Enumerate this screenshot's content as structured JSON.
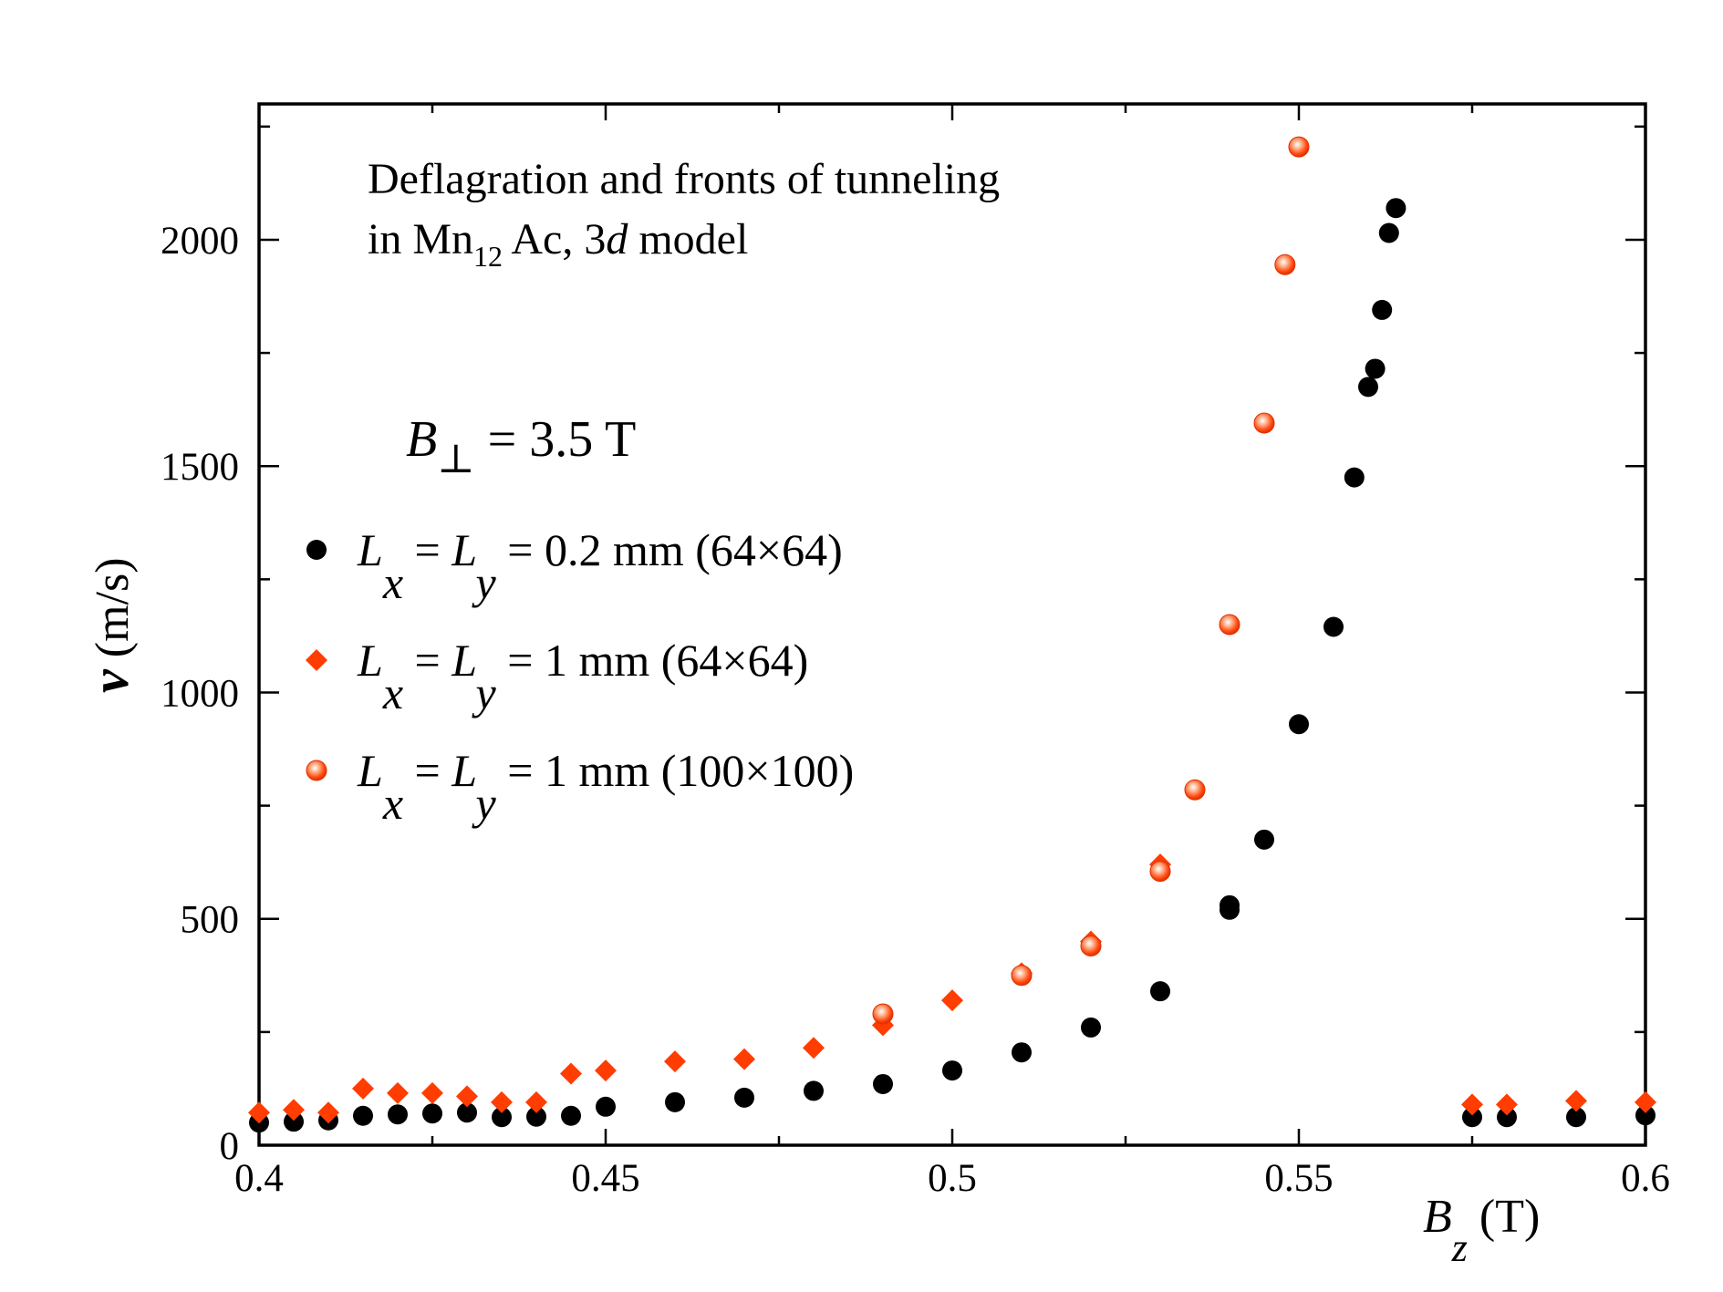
{
  "chart_data": {
    "type": "scatter",
    "title": {
      "line1": "Deflagration and fronts of tunneling",
      "line2_prefix": "in Mn",
      "line2_sub": "12",
      "line2_mid": " Ac, 3",
      "line2_italic": "d",
      "line2_suffix": "  model"
    },
    "field_annotation": {
      "symbol": "B",
      "sub": "⊥",
      "rest": " = 3.5 T"
    },
    "xlabel": {
      "symbol": "B",
      "sub": "z",
      "unit": " (T)"
    },
    "ylabel": {
      "symbol": "v",
      "unit": "  (m/s)"
    },
    "xlim": [
      0.4,
      0.6
    ],
    "ylim": [
      0,
      2300
    ],
    "x_ticks": [
      0.4,
      0.45,
      0.5,
      0.55,
      0.6
    ],
    "x_tick_labels": [
      "0.4",
      "0.45",
      "0.5",
      "0.55",
      "0.6"
    ],
    "y_ticks": [
      0,
      500,
      1000,
      1500,
      2000
    ],
    "y_tick_labels": [
      "0",
      "500",
      "1000",
      "1500",
      "2000"
    ],
    "grid": false,
    "legend_position": "left",
    "series": [
      {
        "name": "Lx = Ly = 0.2 mm (64×64)",
        "label_parts": [
          "L",
          "x",
          " = ",
          "L",
          "y",
          " = 0.2 mm (64×64)"
        ],
        "marker": "circle",
        "color": "#000000",
        "x": [
          0.4,
          0.405,
          0.41,
          0.415,
          0.42,
          0.425,
          0.43,
          0.435,
          0.44,
          0.445,
          0.45,
          0.46,
          0.47,
          0.48,
          0.49,
          0.5,
          0.51,
          0.52,
          0.53,
          0.54,
          0.54,
          0.545,
          0.55,
          0.555,
          0.558,
          0.56,
          0.561,
          0.562,
          0.563,
          0.564,
          0.575,
          0.58,
          0.59,
          0.6
        ],
        "y": [
          50,
          52,
          55,
          65,
          68,
          70,
          72,
          62,
          63,
          65,
          85,
          95,
          105,
          120,
          135,
          165,
          205,
          260,
          340,
          520,
          530,
          675,
          930,
          1145,
          1475,
          1675,
          1715,
          1845,
          2015,
          2070,
          62,
          62,
          62,
          66
        ]
      },
      {
        "name": "Lx = Ly = 1 mm (64×64)",
        "label_parts": [
          "L",
          "x",
          " = ",
          "L",
          "y",
          " = 1 mm (64×64)"
        ],
        "marker": "diamond",
        "color": "#FF3D00",
        "x": [
          0.4,
          0.405,
          0.41,
          0.415,
          0.42,
          0.425,
          0.43,
          0.435,
          0.44,
          0.445,
          0.45,
          0.46,
          0.47,
          0.48,
          0.49,
          0.5,
          0.51,
          0.52,
          0.53,
          0.575,
          0.58,
          0.59,
          0.6
        ],
        "y": [
          72,
          78,
          72,
          125,
          115,
          115,
          108,
          95,
          95,
          158,
          165,
          185,
          190,
          215,
          265,
          320,
          380,
          450,
          620,
          90,
          90,
          98,
          95
        ]
      },
      {
        "name": "Lx = Ly = 1 mm (100×100)",
        "label_parts": [
          "L",
          "x",
          " = ",
          "L",
          "y",
          " = 1 mm (100×100)"
        ],
        "marker": "shaded-circle",
        "color": "#FF3D00",
        "x": [
          0.49,
          0.51,
          0.52,
          0.53,
          0.535,
          0.54,
          0.545,
          0.548,
          0.55
        ],
        "y": [
          290,
          375,
          440,
          605,
          785,
          1150,
          1595,
          1945,
          2205
        ]
      }
    ]
  }
}
